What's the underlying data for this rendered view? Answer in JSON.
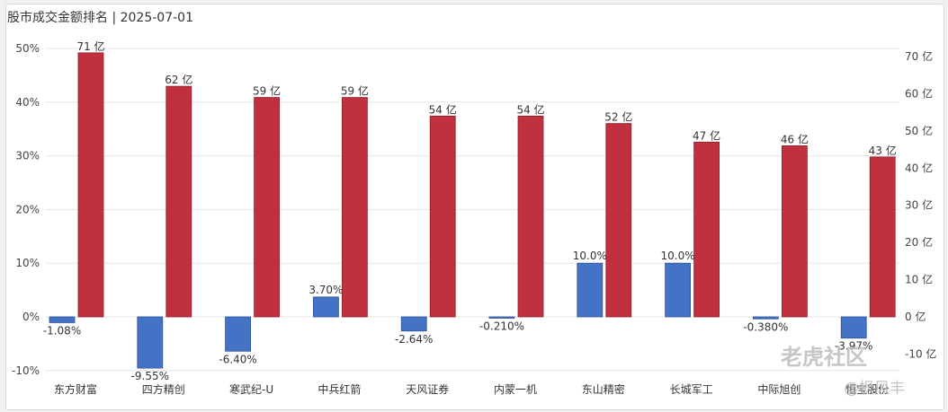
{
  "title": "股市成交金额排名 | 2025-07-01",
  "watermark": {
    "brand": "老虎社区",
    "author": "@枫风丰"
  },
  "chart_data": {
    "type": "bar",
    "categories": [
      "东方财富",
      "四方精创",
      "寒武纪-U",
      "中兵红箭",
      "天风证券",
      "内蒙一机",
      "东山精密",
      "长城军工",
      "中际旭创",
      "恒宝股份"
    ],
    "series": [
      {
        "axis": "left",
        "color": "#4472c4",
        "values": [
          -1.08,
          -9.55,
          -6.4,
          3.7,
          -2.64,
          -0.21,
          10.0,
          10.0,
          -0.38,
          -3.97
        ],
        "labels": [
          "-1.08%",
          "-9.55%",
          "-6.40%",
          "3.70%",
          "-2.64%",
          "-0.210%",
          "10.0%",
          "10.0%",
          "-0.380%",
          "-3.97%"
        ]
      },
      {
        "axis": "right",
        "color": "#c0303f",
        "values": [
          71,
          62,
          59,
          59,
          54,
          54,
          52,
          47,
          46,
          43
        ],
        "labels": [
          "71 亿",
          "62 亿",
          "59 亿",
          "59 亿",
          "54 亿",
          "54 亿",
          "52 亿",
          "47 亿",
          "46 亿",
          "43 亿"
        ]
      }
    ],
    "left_axis": {
      "ylim": [
        -10,
        50
      ],
      "ticks": [
        50,
        40,
        30,
        20,
        10,
        0,
        -10
      ],
      "tick_labels": [
        "50%",
        "40%",
        "30%",
        "20%",
        "10%",
        "0%",
        "-10%"
      ]
    },
    "right_axis": {
      "ylim": [
        -14,
        70
      ],
      "ticks": [
        70,
        60,
        50,
        40,
        30,
        20,
        10,
        0,
        -10
      ],
      "tick_labels": [
        "70 亿",
        "60 亿",
        "50 亿",
        "40 亿",
        "30 亿",
        "20 亿",
        "10 亿",
        "0 亿",
        "-10 亿"
      ]
    },
    "grid": true,
    "legend": "none"
  }
}
